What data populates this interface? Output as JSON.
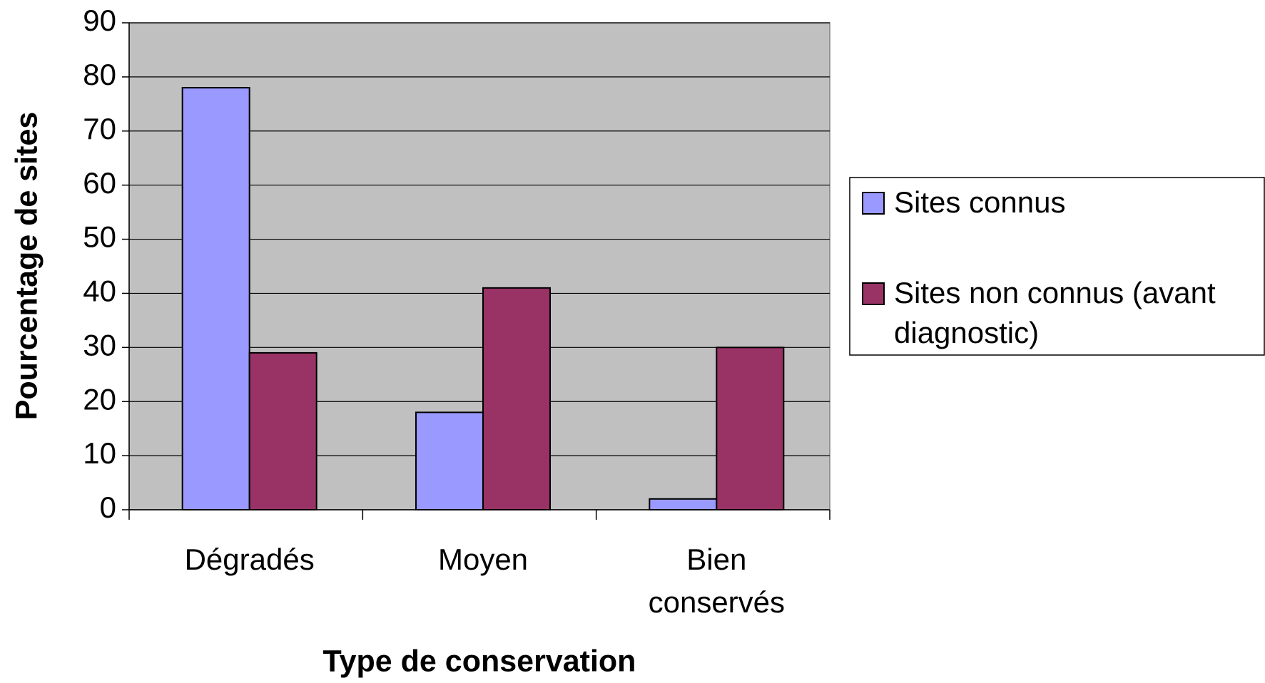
{
  "chart_data": {
    "type": "bar",
    "x_label": "Type de conservation",
    "y_label": "Pourcentage de sites",
    "categories": [
      "Dégradés",
      "Moyen",
      "Bien conservés"
    ],
    "series": [
      {
        "name": "Sites connus",
        "color": "#9999ff",
        "values": [
          78,
          18,
          2
        ]
      },
      {
        "name": "Sites non connus (avant diagnostic)",
        "color": "#993366",
        "values": [
          29,
          41,
          30
        ]
      }
    ],
    "ylim": [
      0,
      90
    ],
    "yticks": [
      0,
      10,
      20,
      30,
      40,
      50,
      60,
      70,
      80,
      90
    ],
    "grid": true,
    "legend": "right",
    "plot_background": "#c0c0c0"
  }
}
